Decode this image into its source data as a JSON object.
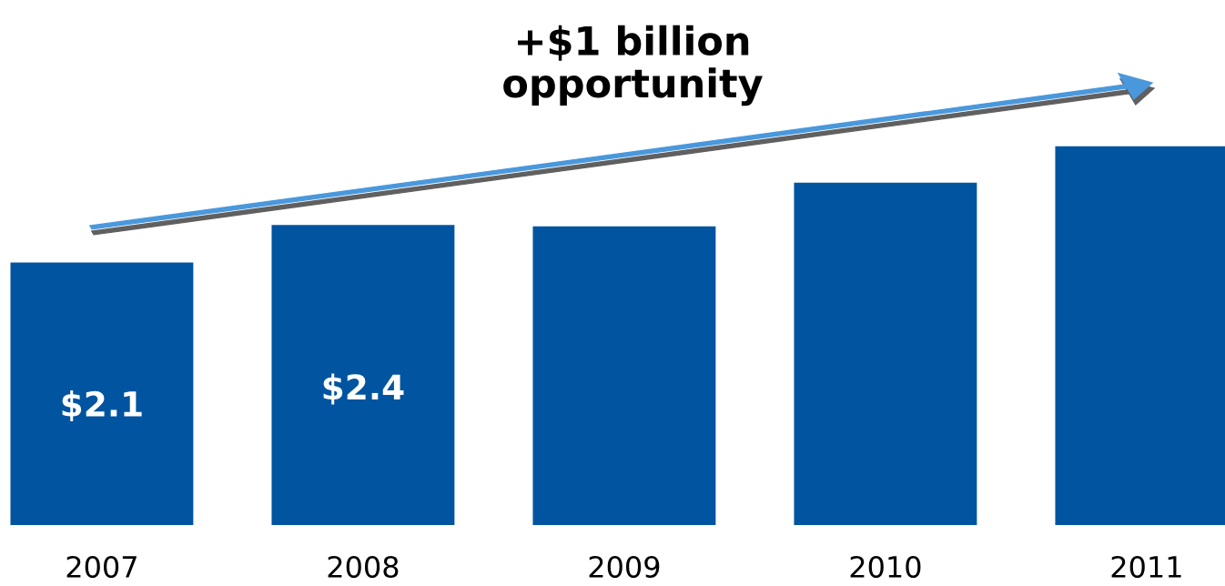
{
  "chart_data": {
    "type": "bar",
    "categories": [
      "2007",
      "2008",
      "2009",
      "2010",
      "2011"
    ],
    "values": [
      2.1,
      2.4,
      2.39,
      2.74,
      3.03
    ],
    "value_labels": [
      "$2.1",
      "$2.4",
      null,
      null,
      null
    ],
    "color": "#0054a0",
    "tick_labels": "x",
    "grid": false,
    "annotations": [
      "+$1 billion\nopportunity"
    ]
  }
}
